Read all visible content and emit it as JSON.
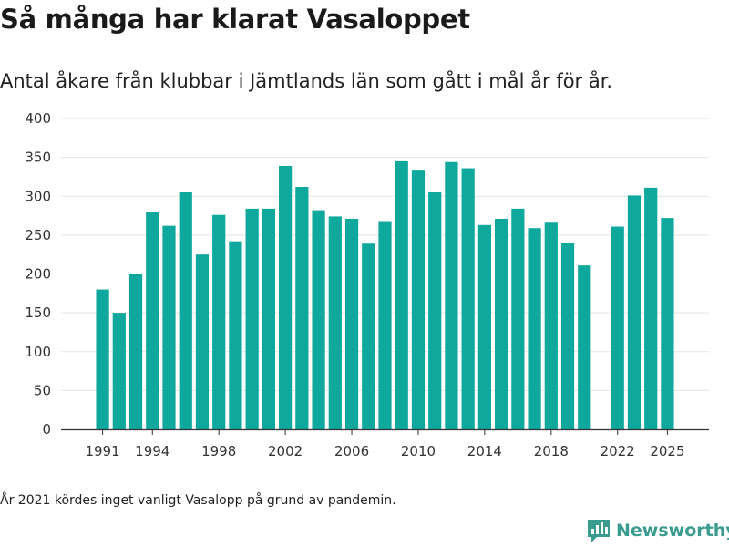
{
  "title": "Så många har klarat Vasaloppet",
  "subtitle": "Antal åkare från klubbar i Jämtlands län som gått i mål år för år.",
  "footnote": "År 2021 kördes inget vanligt Vasalopp på grund av pandemin.",
  "brand": {
    "name": "Newsworthy",
    "icon": "newsworthy-logo-icon",
    "color": "#3a9c8e"
  },
  "colors": {
    "bar": "#0ea89c",
    "grid": "#e3e3e3",
    "axis": "#333333",
    "text": "#333333"
  },
  "chart_data": {
    "type": "bar",
    "title": "Så många har klarat Vasaloppet",
    "xlabel": "",
    "ylabel": "",
    "ylim": [
      0,
      400
    ],
    "yticks": [
      0,
      50,
      100,
      150,
      200,
      250,
      300,
      350,
      400
    ],
    "xlim": [
      1988.5,
      2027.5
    ],
    "xticks": [
      1991,
      1994,
      1998,
      2002,
      2006,
      2010,
      2014,
      2018,
      2022,
      2025
    ],
    "grid": true,
    "categories": [
      1991,
      1992,
      1993,
      1994,
      1995,
      1996,
      1997,
      1998,
      1999,
      2000,
      2001,
      2002,
      2003,
      2004,
      2005,
      2006,
      2007,
      2008,
      2009,
      2010,
      2011,
      2012,
      2013,
      2014,
      2015,
      2016,
      2017,
      2018,
      2019,
      2020,
      2022,
      2023,
      2024,
      2025
    ],
    "values": [
      180,
      150,
      200,
      280,
      262,
      305,
      225,
      276,
      242,
      284,
      284,
      339,
      312,
      282,
      274,
      271,
      239,
      268,
      345,
      333,
      305,
      344,
      336,
      263,
      271,
      284,
      259,
      266,
      240,
      211,
      261,
      301,
      311,
      272
    ]
  }
}
